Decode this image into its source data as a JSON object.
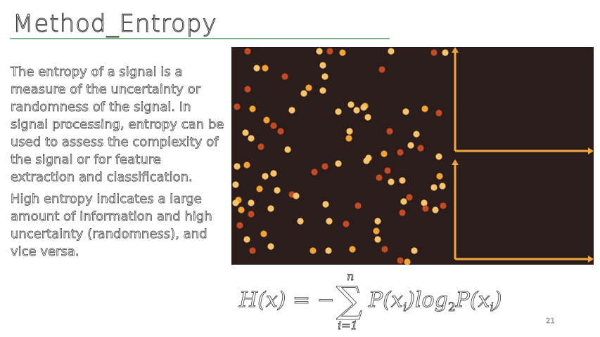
{
  "slide": {
    "title": "Method_Entropy",
    "paragraphs": [
      "The entropy of a signal is a measure of the uncertainty or randomness of the signal. In signal processing, entropy can be used to assess the complexity of the signal or for feature extraction and classification.",
      "High entropy indicates a large amount of information and high uncertainty (randomness), and vice versa."
    ],
    "page_number": "21"
  },
  "figure": {
    "background": "#2b1d1b",
    "dot_colors": {
      "light": "#f8c46a",
      "mid": "#f2a331",
      "dark": "#c34a23"
    },
    "axis_color": "#f4a53c"
  },
  "formula": {
    "lhs": "H(x) = −",
    "sum_top": "n",
    "sum_bottom": "i=1",
    "rhs": "P(x",
    "rhs_sub": "i",
    "log": ")log",
    "log_sub": "2",
    "rhs2": "P(x",
    "rhs2_sub": "i",
    "close": ")"
  }
}
